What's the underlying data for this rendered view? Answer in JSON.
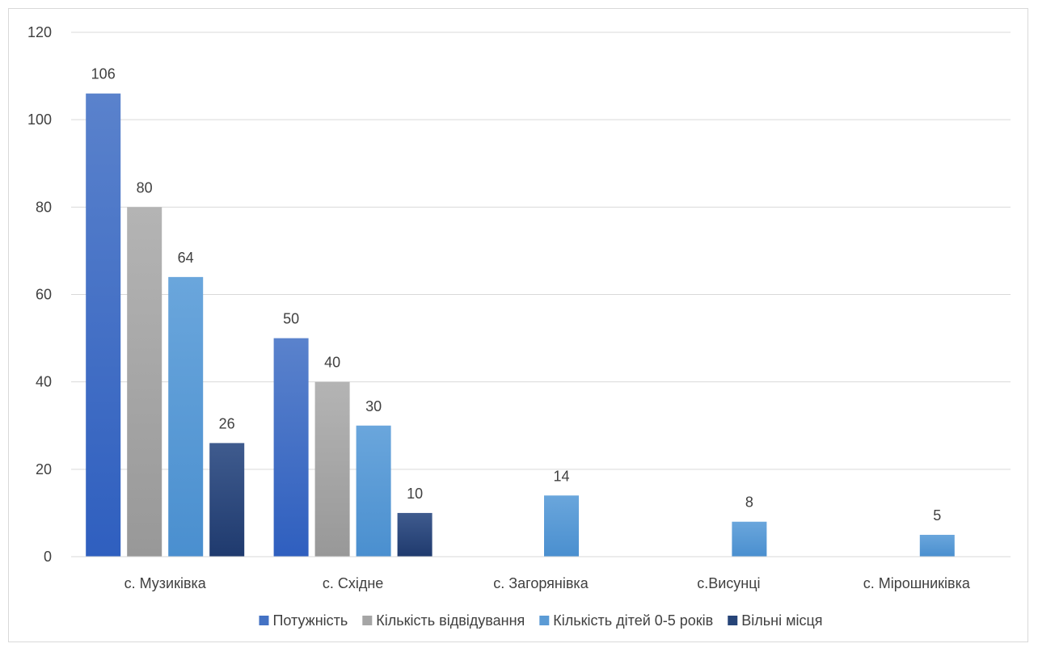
{
  "chart_data": {
    "type": "bar",
    "title": "",
    "xlabel": "",
    "ylabel": "",
    "ylim": [
      0,
      120
    ],
    "yticks": [
      0,
      20,
      40,
      60,
      80,
      100,
      120
    ],
    "grid": true,
    "legend_position": "bottom",
    "categories": [
      "с. Музиківка",
      "с. Східне",
      "с. Загорянівка",
      "с.Висунці",
      "с. Мірошниківка"
    ],
    "series": [
      {
        "name": "Потужність",
        "color": "#4472c4",
        "values": [
          106,
          50,
          null,
          null,
          null
        ]
      },
      {
        "name": "Кількість відвідування",
        "color": "#a5a5a5",
        "values": [
          80,
          40,
          null,
          null,
          null
        ]
      },
      {
        "name": "Кількість дітей 0-5 років",
        "color": "#5b9bd5",
        "values": [
          64,
          30,
          14,
          8,
          5
        ]
      },
      {
        "name": "Вільні місця",
        "color": "#264478",
        "values": [
          26,
          10,
          null,
          null,
          null
        ]
      }
    ]
  }
}
